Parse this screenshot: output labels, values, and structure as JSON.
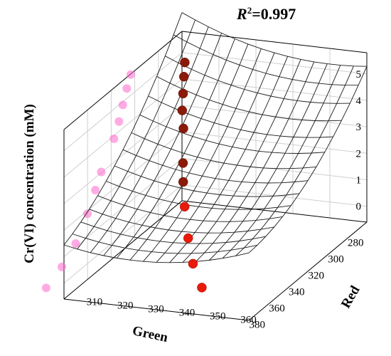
{
  "chart_data": {
    "type": "3d-surface-scatter",
    "annotation": {
      "r2_symbol": "R",
      "r2_sup": "2",
      "r2_value": "=0.997"
    },
    "zlabel": "Cr(VI) concentration (mM)",
    "xlabel": "Green",
    "ylabel": "Red",
    "x_ticks": [
      280,
      300,
      320,
      340,
      360,
      380
    ],
    "y_ticks": [
      310,
      320,
      330,
      340,
      350,
      360
    ],
    "z_ticks": [
      0,
      1,
      2,
      3,
      4,
      5
    ],
    "xlim": [
      270,
      390
    ],
    "ylim": [
      305,
      365
    ],
    "zlim": [
      -0.6,
      5.8
    ],
    "points": [
      {
        "green": 286,
        "red": 311,
        "conc": 5.2
      },
      {
        "green": 290,
        "red": 312,
        "conc": 4.8
      },
      {
        "green": 294,
        "red": 313,
        "conc": 4.3
      },
      {
        "green": 298,
        "red": 314,
        "conc": 3.8
      },
      {
        "green": 303,
        "red": 316,
        "conc": 3.3
      },
      {
        "green": 316,
        "red": 320,
        "conc": 2.45
      },
      {
        "green": 322,
        "red": 322,
        "conc": 1.95
      },
      {
        "green": 330,
        "red": 325,
        "conc": 1.3
      },
      {
        "green": 342,
        "red": 330,
        "conc": 0.55
      },
      {
        "green": 356,
        "red": 336,
        "conc": 0.1
      },
      {
        "green": 372,
        "red": 344,
        "conc": -0.2
      }
    ],
    "surface_formula": "quadratic fit of Cr(VI) concentration on Green and Red",
    "grid": true,
    "colors": {
      "point_back": "#8b1a08",
      "point_front": "#e81a0a",
      "mesh": "#1a1a1a",
      "ghost": "#ff66cc"
    }
  }
}
